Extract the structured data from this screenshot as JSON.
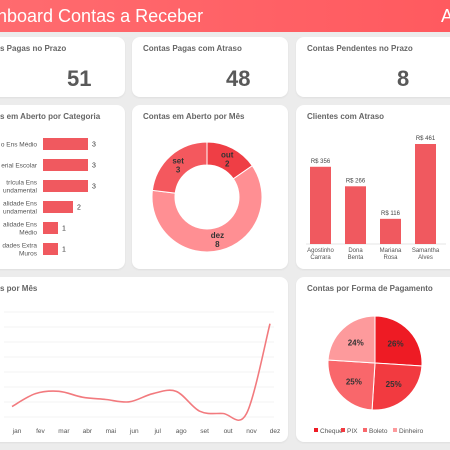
{
  "header": {
    "title": "shboard Contas a Receber",
    "right_text": "A"
  },
  "kpis": [
    {
      "label": "s Pagas no Prazo",
      "value": "51"
    },
    {
      "label": "Contas Pagas com Atraso",
      "value": "48"
    },
    {
      "label": "Contas Pendentes no Prazo",
      "value": "8"
    }
  ],
  "categoria": {
    "title": "s em Aberto por Categoria",
    "chart_data": {
      "type": "bar",
      "orientation": "horizontal",
      "categories": [
        [
          "o Ens Médio"
        ],
        [
          "erial Escolar"
        ],
        [
          "trícula Ens",
          "undamental"
        ],
        [
          "alidade Ens",
          "undamental"
        ],
        [
          "alidade Ens",
          "Médio"
        ],
        [
          "dades Extra",
          "Muros"
        ]
      ],
      "values": [
        3,
        3,
        3,
        2,
        1,
        1
      ],
      "labels": [
        "3",
        "3",
        "3",
        "2",
        "1",
        "1"
      ],
      "xlim": [
        0,
        3
      ]
    }
  },
  "mes_donut": {
    "title": "Contas em Aberto por Mês",
    "chart_data": {
      "type": "pie",
      "donut": true,
      "slices": [
        {
          "name": "out",
          "value": 2,
          "color": "#ef3e45"
        },
        {
          "name": "dez",
          "value": 8,
          "color": "#ff8f93"
        },
        {
          "name": "set",
          "value": 3,
          "color": "#f4585e"
        }
      ]
    }
  },
  "clientes": {
    "title": "Clientes com Atraso",
    "chart_data": {
      "type": "bar",
      "categories": [
        [
          "Agostinho",
          "Carrara"
        ],
        [
          "Dona",
          "Benta"
        ],
        [
          "Mariana",
          "Rosa"
        ],
        [
          "Samantha",
          "Alves"
        ]
      ],
      "values": [
        356,
        266,
        116,
        461
      ],
      "labels": [
        "R$ 356",
        "R$ 266",
        "R$ 116",
        "R$ 461"
      ],
      "ylim": [
        0,
        461
      ]
    }
  },
  "linha": {
    "title": "s por Mês",
    "chart_data": {
      "type": "line",
      "categories": [
        "jan",
        "fev",
        "mar",
        "abr",
        "mai",
        "jun",
        "jul",
        "ago",
        "set",
        "out",
        "nov",
        "dez"
      ],
      "values": [
        9,
        20,
        22,
        17,
        15,
        13,
        20,
        22,
        5,
        3,
        3,
        80
      ],
      "ylim": [
        0,
        90
      ],
      "grid": true
    }
  },
  "pagamento": {
    "title": "Contas por Forma de Pagamento",
    "chart_data": {
      "type": "pie",
      "slices": [
        {
          "name": "Cheque",
          "value": 26,
          "label": "26%",
          "color": "#ee1b24"
        },
        {
          "name": "PIX",
          "value": 25,
          "label": "25%",
          "color": "#f23a40"
        },
        {
          "name": "Boleto",
          "value": 25,
          "label": "25%",
          "color": "#f9676b"
        },
        {
          "name": "Dinheiro",
          "value": 24,
          "label": "24%",
          "color": "#fd9a9c"
        }
      ],
      "legend": "bottom"
    }
  }
}
